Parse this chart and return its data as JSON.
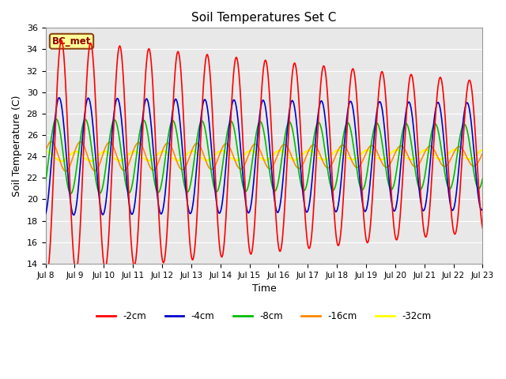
{
  "title": "Soil Temperatures Set C",
  "xlabel": "Time",
  "ylabel": "Soil Temperature (C)",
  "ylim": [
    14,
    36
  ],
  "xlim": [
    0,
    15
  ],
  "yticks": [
    14,
    16,
    18,
    20,
    22,
    24,
    26,
    28,
    30,
    32,
    34,
    36
  ],
  "xtick_labels": [
    "Jul 8",
    "Jul 9",
    "Jul 10",
    "Jul 11",
    "Jul 12",
    "Jul 13",
    "Jul 14",
    "Jul 15",
    "Jul 16",
    "Jul 17",
    "Jul 18",
    "Jul 19",
    "Jul 20",
    "Jul 21",
    "Jul 22",
    "Jul 23"
  ],
  "colors": {
    "-2cm": "#ff0000",
    "-4cm": "#0000cc",
    "-8cm": "#00bb00",
    "-16cm": "#ff8800",
    "-32cm": "#ffff00"
  },
  "label_box": "BC_met",
  "plot_bg": "#e8e8e8",
  "fig_bg": "#ffffff",
  "title_fontsize": 11,
  "mean_temp": 24.0,
  "cm2_amp_start": 11.0,
  "cm2_amp_end": 7.0,
  "cm2_phase": -1.87,
  "cm4_amp_start": 5.5,
  "cm4_amp_end": 5.0,
  "cm4_phase_lag": 0.08,
  "cm8_amp_start": 3.5,
  "cm8_amp_end": 3.0,
  "cm8_phase_lag": 0.18,
  "cm16_amp_start": 1.4,
  "cm16_amp_end": 0.9,
  "cm16_phase_lag": 0.35,
  "cm32_amp": 0.45,
  "cm32_phase_lag": 0.5
}
